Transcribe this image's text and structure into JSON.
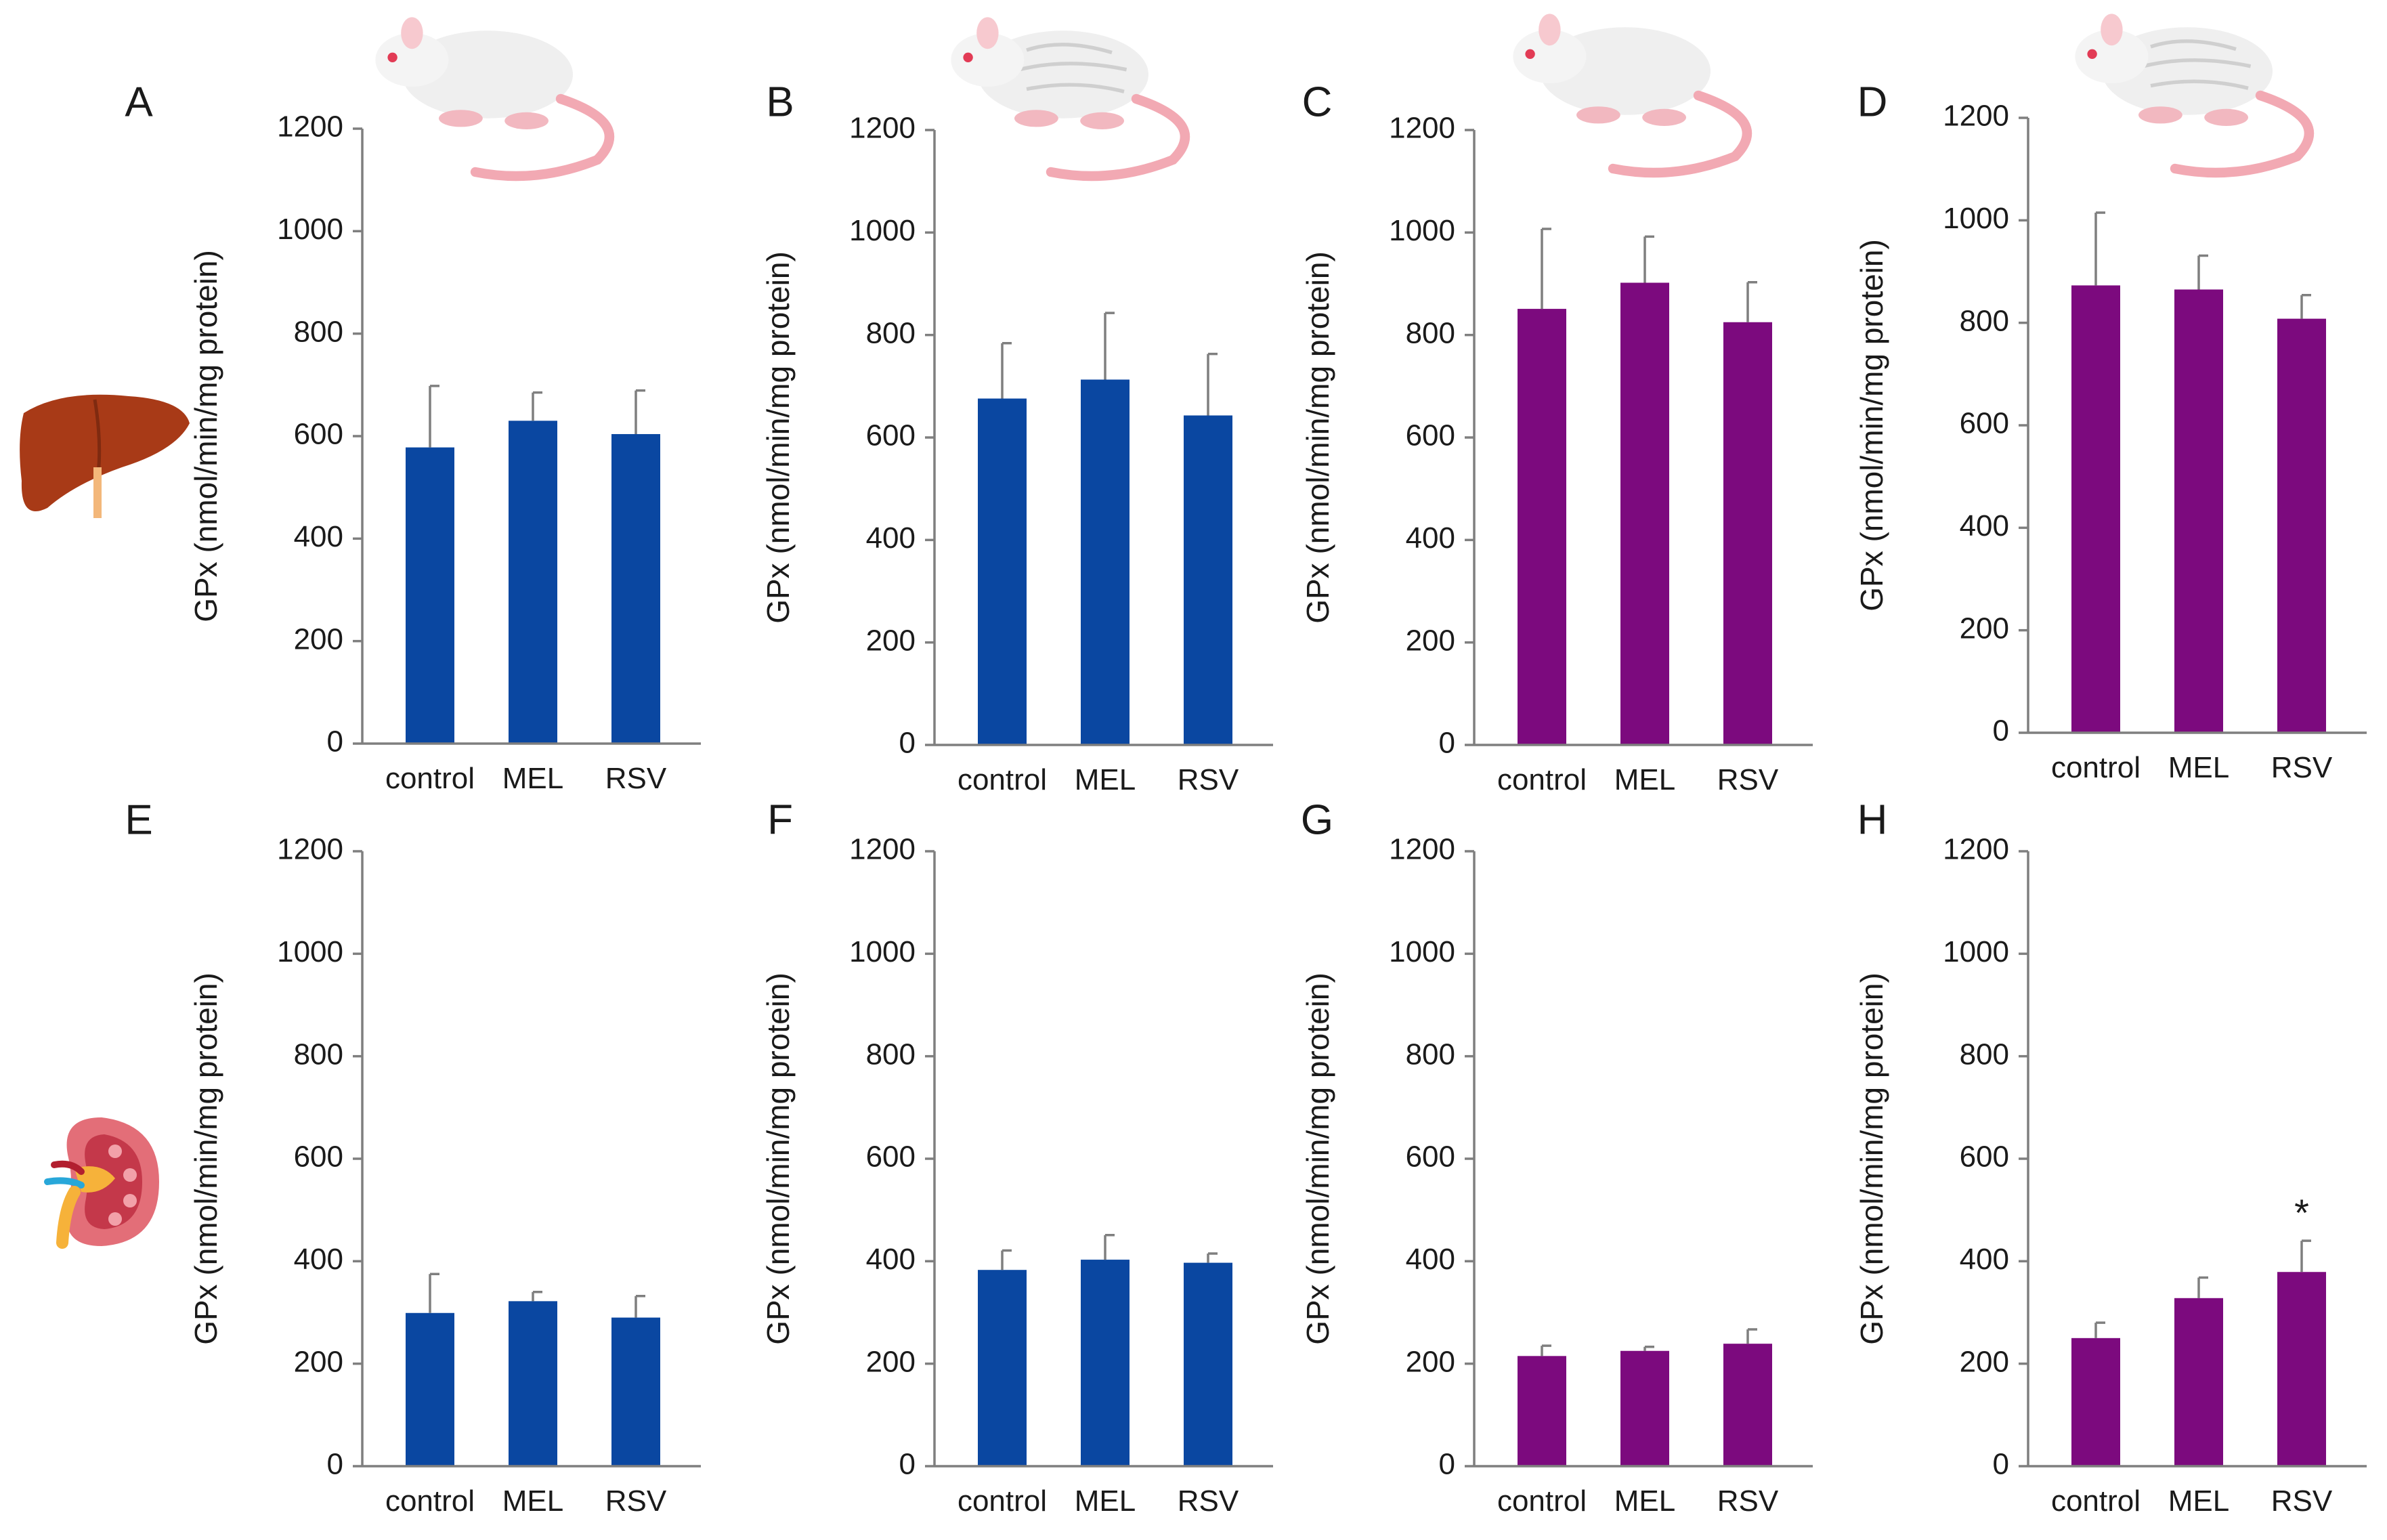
{
  "figure": {
    "bar_colors": {
      "blue": "#0a47a1",
      "purple": "#7c0a7e"
    },
    "row_icons": [
      "liver-icon",
      "kidney-icon"
    ],
    "column_icons": [
      "white-rat-icon",
      "aged-rat-icon",
      "white-rat-icon",
      "aged-rat-icon"
    ]
  },
  "chart_data": [
    {
      "panel": "A",
      "type": "bar",
      "categories": [
        "control",
        "MEL",
        "RSV"
      ],
      "values": [
        578,
        630,
        604
      ],
      "errors": [
        120,
        55,
        85
      ],
      "ylabel": "GPx (nmol/min/mg protein)",
      "ylim": [
        0,
        1200
      ],
      "yticks": [
        "0",
        "200",
        "400",
        "600",
        "800",
        "1000",
        "1200"
      ],
      "color": "#0a47a1",
      "annotations": [
        "",
        "",
        ""
      ]
    },
    {
      "panel": "B",
      "type": "bar",
      "categories": [
        "control",
        "MEL",
        "RSV"
      ],
      "values": [
        676,
        713,
        643
      ],
      "errors": [
        108,
        130,
        120
      ],
      "ylabel": "GPx (nmol/min/mg protein)",
      "ylim": [
        0,
        1200
      ],
      "yticks": [
        "0",
        "200",
        "400",
        "600",
        "800",
        "1000",
        "1200"
      ],
      "color": "#0a47a1",
      "annotations": [
        "",
        "",
        ""
      ]
    },
    {
      "panel": "C",
      "type": "bar",
      "categories": [
        "control",
        "MEL",
        "RSV"
      ],
      "values": [
        851,
        902,
        825
      ],
      "errors": [
        156,
        90,
        78
      ],
      "ylabel": "GPx (nmol/min/mg protein)",
      "ylim": [
        0,
        1200
      ],
      "yticks": [
        "0",
        "200",
        "400",
        "600",
        "800",
        "1000",
        "1200"
      ],
      "color": "#7c0a7e",
      "annotations": [
        "",
        "",
        ""
      ]
    },
    {
      "panel": "D",
      "type": "bar",
      "categories": [
        "control",
        "MEL",
        "RSV"
      ],
      "values": [
        873,
        865,
        808
      ],
      "errors": [
        142,
        66,
        46
      ],
      "ylabel": "GPx (nmol/min/mg protein)",
      "ylim": [
        0,
        1200
      ],
      "yticks": [
        "0",
        "200",
        "400",
        "600",
        "800",
        "1000",
        "1200"
      ],
      "color": "#7c0a7e",
      "annotations": [
        "",
        "",
        ""
      ]
    },
    {
      "panel": "E",
      "type": "bar",
      "categories": [
        "control",
        "MEL",
        "RSV"
      ],
      "values": [
        299,
        322,
        290
      ],
      "errors": [
        76,
        18,
        42
      ],
      "ylabel": "GPx (nmol/min/mg protein)",
      "ylim": [
        0,
        1200
      ],
      "yticks": [
        "0",
        "200",
        "400",
        "600",
        "800",
        "1000",
        "1200"
      ],
      "color": "#0a47a1",
      "annotations": [
        "",
        "",
        ""
      ]
    },
    {
      "panel": "F",
      "type": "bar",
      "categories": [
        "control",
        "MEL",
        "RSV"
      ],
      "values": [
        383,
        403,
        397
      ],
      "errors": [
        38,
        48,
        18
      ],
      "ylabel": "GPx (nmol/min/mg protein)",
      "ylim": [
        0,
        1200
      ],
      "yticks": [
        "0",
        "200",
        "400",
        "600",
        "800",
        "1000",
        "1200"
      ],
      "color": "#0a47a1",
      "annotations": [
        "",
        "",
        ""
      ]
    },
    {
      "panel": "G",
      "type": "bar",
      "categories": [
        "control",
        "MEL",
        "RSV"
      ],
      "values": [
        215,
        225,
        239
      ],
      "errors": [
        20,
        8,
        28
      ],
      "ylabel": "GPx (nmol/min/mg protein)",
      "ylim": [
        0,
        1200
      ],
      "yticks": [
        "0",
        "200",
        "400",
        "600",
        "800",
        "1000",
        "1200"
      ],
      "color": "#7c0a7e",
      "annotations": [
        "",
        "",
        ""
      ]
    },
    {
      "panel": "H",
      "type": "bar",
      "categories": [
        "control",
        "MEL",
        "RSV"
      ],
      "values": [
        250,
        328,
        379
      ],
      "errors": [
        30,
        40,
        61
      ],
      "ylabel": "GPx (nmol/min/mg protein)",
      "ylim": [
        0,
        1200
      ],
      "yticks": [
        "0",
        "200",
        "400",
        "600",
        "800",
        "1000",
        "1200"
      ],
      "color": "#7c0a7e",
      "annotations": [
        "",
        "",
        "*"
      ]
    }
  ]
}
